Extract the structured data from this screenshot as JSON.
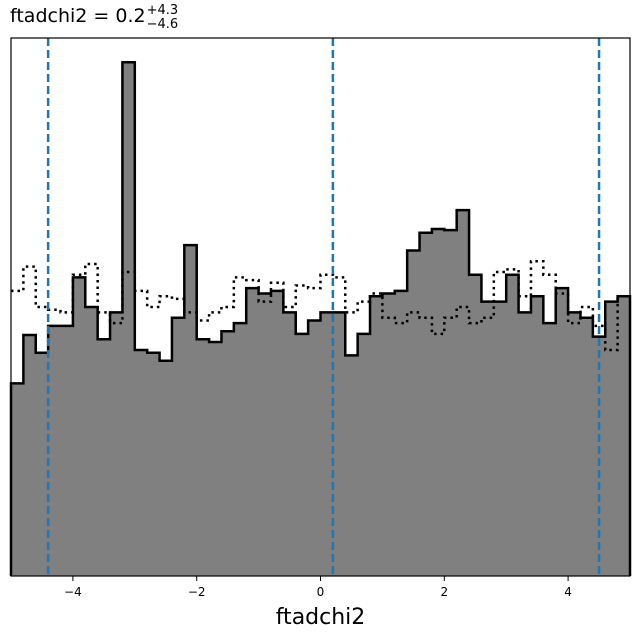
{
  "chart_data": {
    "type": "histogram",
    "title": {
      "text": "ftadchi2 = 0.2",
      "upper": "+4.3",
      "lower": "−4.6"
    },
    "xlabel": "ftadchi2",
    "ylabel": "",
    "xlim": [
      -5,
      5
    ],
    "ylim": [
      0,
      1
    ],
    "x_ticks": [
      -4,
      -2,
      0,
      2,
      4
    ],
    "x_tick_labels": [
      "−4",
      "−2",
      "0",
      "2",
      "4"
    ],
    "bin_edges": [
      -5,
      -4.8,
      -4.6,
      -4.4,
      -4.2,
      -4,
      -3.8,
      -3.6,
      -3.4,
      -3.2,
      -3,
      -2.8,
      -2.6,
      -2.4,
      -2.2,
      -2,
      -1.8,
      -1.6,
      -1.4,
      -1.2,
      -1,
      -0.8,
      -0.6,
      -0.4,
      -0.2,
      0,
      0.2,
      0.4,
      0.6,
      0.8,
      1,
      1.2,
      1.4,
      1.6,
      1.8,
      2,
      2.2,
      2.4,
      2.6,
      2.8,
      3,
      3.2,
      3.4,
      3.6,
      3.8,
      4,
      4.2,
      4.4,
      4.6,
      4.8,
      5
    ],
    "series": [
      {
        "style": "filled-step",
        "fill": "#808080",
        "stroke": "#000000",
        "values": [
          0.358,
          0.448,
          0.415,
          0.465,
          0.465,
          0.555,
          0.5,
          0.44,
          0.49,
          0.955,
          0.42,
          0.415,
          0.4,
          0.48,
          0.615,
          0.44,
          0.435,
          0.455,
          0.47,
          0.535,
          0.525,
          0.53,
          0.49,
          0.45,
          0.475,
          0.49,
          0.49,
          0.41,
          0.45,
          0.52,
          0.525,
          0.53,
          0.605,
          0.638,
          0.645,
          0.643,
          0.68,
          0.56,
          0.51,
          0.51,
          0.56,
          0.49,
          0.52,
          0.47,
          0.535,
          0.49,
          0.48,
          0.445,
          0.51,
          0.52
        ]
      },
      {
        "style": "dotted-step",
        "stroke": "#000000",
        "values": [
          0.53,
          0.575,
          0.5,
          0.495,
          0.49,
          0.56,
          0.58,
          0.49,
          0.47,
          0.565,
          0.53,
          0.5,
          0.52,
          0.515,
          0.49,
          0.475,
          0.49,
          0.5,
          0.555,
          0.55,
          0.51,
          0.545,
          0.5,
          0.54,
          0.535,
          0.56,
          0.555,
          0.49,
          0.51,
          0.525,
          0.48,
          0.47,
          0.49,
          0.48,
          0.45,
          0.48,
          0.5,
          0.47,
          0.48,
          0.565,
          0.57,
          0.52,
          0.585,
          0.56,
          0.525,
          0.47,
          0.5,
          0.465,
          0.42,
          0.52
        ]
      }
    ],
    "vlines": {
      "values": [
        -4.4,
        0.2,
        4.5
      ],
      "color": "#1f77b4",
      "style": "dashed"
    }
  }
}
